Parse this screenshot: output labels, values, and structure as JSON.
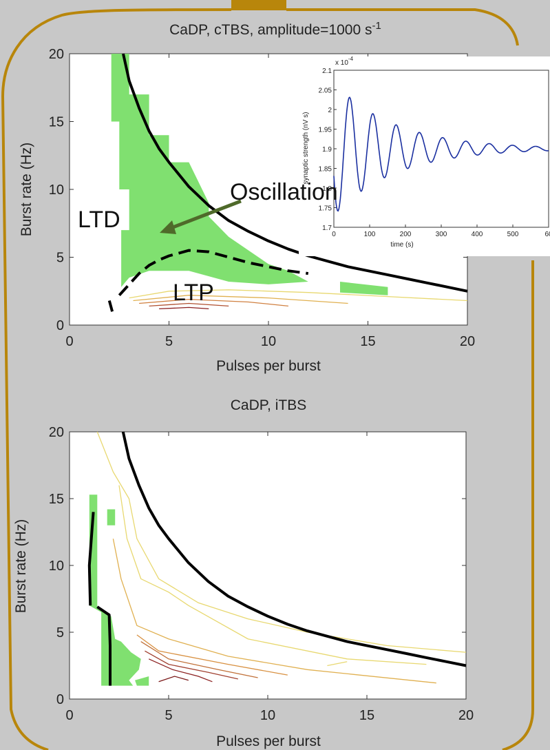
{
  "frame": {
    "border_color": "#b8860b",
    "background": "#c8c8c8"
  },
  "chart_data": [
    {
      "id": "top",
      "type": "contour",
      "title": "CaDP, cTBS, amplitude=1000 s",
      "title_superscript": "-1",
      "xlabel": "Pulses per burst",
      "ylabel": "Burst rate (Hz)",
      "xlim": [
        0,
        20
      ],
      "ylim": [
        0,
        20
      ],
      "xticks": [
        "0",
        "5",
        "10",
        "15",
        "20"
      ],
      "yticks": [
        "0",
        "5",
        "10",
        "15",
        "20"
      ],
      "annotations": {
        "ltd": "LTD",
        "ltp": "LTP",
        "oscillation": "Oscillation"
      },
      "series": [
        {
          "kind": "boundary",
          "style": "solid",
          "points": [
            [
              2.7,
              20
            ],
            [
              3,
              18
            ],
            [
              3.5,
              16
            ],
            [
              4,
              14.3
            ],
            [
              4.5,
              13
            ],
            [
              5,
              12
            ],
            [
              6,
              10.2
            ],
            [
              7,
              8.8
            ],
            [
              8,
              7.7
            ],
            [
              9,
              6.9
            ],
            [
              10,
              6.2
            ],
            [
              11,
              5.6
            ],
            [
              12,
              5.1
            ],
            [
              13,
              4.7
            ],
            [
              14,
              4.3
            ],
            [
              15,
              4
            ],
            [
              16,
              3.7
            ],
            [
              17,
              3.4
            ],
            [
              18,
              3.1
            ],
            [
              19,
              2.8
            ],
            [
              20,
              2.5
            ]
          ]
        },
        {
          "kind": "boundary",
          "style": "dashed",
          "points": [
            [
              2.5,
              2.2
            ],
            [
              3,
              3
            ],
            [
              3.5,
              3.8
            ],
            [
              4,
              4.4
            ],
            [
              4.5,
              4.8
            ],
            [
              5,
              5.1
            ],
            [
              5.5,
              5.3
            ],
            [
              6,
              5.5
            ],
            [
              7,
              5.4
            ],
            [
              8,
              5
            ],
            [
              9,
              4.6
            ],
            [
              10,
              4.3
            ],
            [
              11,
              4
            ],
            [
              12,
              3.8
            ]
          ]
        },
        {
          "kind": "boundary",
          "style": "solid",
          "points": [
            [
              2,
              1.8
            ],
            [
              2.15,
              1
            ]
          ]
        }
      ],
      "regions": [
        {
          "kind": "oscillation",
          "color": "#80e070",
          "points": [
            [
              2.1,
              20
            ],
            [
              3,
              20
            ],
            [
              3,
              17
            ],
            [
              4,
              17
            ],
            [
              4,
              14
            ],
            [
              5,
              14
            ],
            [
              5,
              12
            ],
            [
              6,
              12
            ],
            [
              7,
              9
            ],
            [
              7,
              8
            ],
            [
              8,
              6.5
            ],
            [
              9,
              5.5
            ],
            [
              10,
              4.5
            ],
            [
              11,
              4
            ],
            [
              12,
              3.2
            ],
            [
              10,
              3
            ],
            [
              8,
              3.2
            ],
            [
              6,
              4
            ],
            [
              4,
              4
            ],
            [
              3,
              3.5
            ],
            [
              2.6,
              2.8
            ],
            [
              2.6,
              7
            ],
            [
              3,
              7
            ],
            [
              3,
              10
            ],
            [
              2.5,
              10
            ],
            [
              2.5,
              15
            ],
            [
              2.1,
              15
            ]
          ]
        },
        {
          "kind": "oscillation",
          "color": "#80e070",
          "points": [
            [
              13.6,
              3.2
            ],
            [
              16,
              2.8
            ],
            [
              16,
              2.2
            ],
            [
              13.6,
              2.4
            ]
          ]
        }
      ],
      "contours": [
        {
          "color": "#e8d870",
          "points": [
            [
              3,
              2
            ],
            [
              5,
              2.5
            ],
            [
              8,
              2.6
            ],
            [
              12,
              2.4
            ],
            [
              16,
              2.1
            ],
            [
              20,
              1.8
            ]
          ]
        },
        {
          "color": "#e0b050",
          "points": [
            [
              3.2,
              1.8
            ],
            [
              6,
              2.2
            ],
            [
              10,
              2
            ],
            [
              14,
              1.6
            ]
          ]
        },
        {
          "color": "#d08040",
          "points": [
            [
              3.5,
              1.6
            ],
            [
              6,
              1.9
            ],
            [
              9,
              1.7
            ],
            [
              11,
              1.4
            ]
          ]
        },
        {
          "color": "#b05030",
          "points": [
            [
              4,
              1.4
            ],
            [
              6,
              1.6
            ],
            [
              8,
              1.4
            ]
          ]
        },
        {
          "color": "#8b2020",
          "points": [
            [
              4.5,
              1.2
            ],
            [
              6,
              1.3
            ],
            [
              7,
              1.2
            ]
          ]
        }
      ]
    },
    {
      "id": "inset",
      "type": "line",
      "title": "",
      "xlabel": "time (s)",
      "ylabel": "synaptic strength (nV s)",
      "y_exponent": "x 10",
      "y_exponent_power": "-4",
      "xlim": [
        0,
        600
      ],
      "ylim": [
        1.7,
        2.1
      ],
      "xticks": [
        "0",
        "100",
        "200",
        "300",
        "400",
        "500",
        "60"
      ],
      "yticks": [
        "1.7",
        "1.75",
        "1.8",
        "1.85",
        "1.9",
        "1.95",
        "2",
        "2.05",
        "2.1"
      ],
      "series": [
        {
          "name": "",
          "color": "#1a2fa0",
          "model": {
            "base": 1.9,
            "amp": 0.17,
            "period": 65,
            "decay": 170,
            "phase": 0.42,
            "start": 0,
            "end": 600
          }
        }
      ]
    },
    {
      "id": "bottom",
      "type": "contour",
      "title": "CaDP, iTBS",
      "xlabel": "Pulses per burst",
      "ylabel": "Burst rate (Hz)",
      "xlim": [
        0,
        20
      ],
      "ylim": [
        0,
        20
      ],
      "xticks": [
        "0",
        "5",
        "10",
        "15",
        "20"
      ],
      "yticks": [
        "0",
        "5",
        "10",
        "15",
        "20"
      ],
      "series": [
        {
          "kind": "boundary",
          "style": "solid",
          "points": [
            [
              2.7,
              20
            ],
            [
              3,
              18
            ],
            [
              3.5,
              16
            ],
            [
              4,
              14.3
            ],
            [
              4.5,
              13
            ],
            [
              5,
              12
            ],
            [
              6,
              10.2
            ],
            [
              7,
              8.8
            ],
            [
              8,
              7.7
            ],
            [
              9,
              6.9
            ],
            [
              10,
              6.2
            ],
            [
              11,
              5.6
            ],
            [
              12,
              5.1
            ],
            [
              13,
              4.7
            ],
            [
              14,
              4.3
            ],
            [
              15,
              4
            ],
            [
              16,
              3.7
            ],
            [
              17,
              3.4
            ],
            [
              18,
              3.1
            ],
            [
              19,
              2.8
            ],
            [
              20,
              2.5
            ]
          ]
        },
        {
          "kind": "boundary",
          "style": "solid",
          "points": [
            [
              1.2,
              14
            ],
            [
              1.1,
              12
            ],
            [
              1,
              10
            ],
            [
              1.05,
              7
            ]
          ]
        },
        {
          "kind": "boundary",
          "style": "solid",
          "points": [
            [
              1.4,
              6.9
            ],
            [
              2,
              6.3
            ],
            [
              2.05,
              4
            ],
            [
              2.05,
              1
            ]
          ]
        }
      ],
      "regions": [
        {
          "kind": "oscillation",
          "color": "#80e070",
          "points": [
            [
              1,
              15.3
            ],
            [
              1.4,
              15.3
            ],
            [
              1.4,
              6.9
            ],
            [
              2.1,
              6.2
            ],
            [
              2.3,
              4.5
            ],
            [
              2.6,
              4.3
            ],
            [
              3.1,
              3.5
            ],
            [
              3.6,
              3
            ],
            [
              3.5,
              2.2
            ],
            [
              3,
              1.4
            ],
            [
              3.2,
              1
            ],
            [
              1.6,
              1
            ],
            [
              1.6,
              6.5
            ],
            [
              1,
              7
            ],
            [
              1,
              11
            ]
          ]
        },
        {
          "kind": "oscillation",
          "color": "#80e070",
          "points": [
            [
              3.3,
              1.4
            ],
            [
              4,
              1.7
            ],
            [
              4,
              1
            ],
            [
              3.4,
              1
            ]
          ]
        },
        {
          "kind": "oscillation",
          "color": "#80e070",
          "points": [
            [
              1.9,
              14.2
            ],
            [
              2.3,
              14.2
            ],
            [
              2.3,
              13
            ],
            [
              1.9,
              13
            ]
          ]
        }
      ],
      "contours": [
        {
          "color": "#e8d870",
          "points": [
            [
              1.4,
              20
            ],
            [
              2.2,
              17
            ],
            [
              3,
              15
            ],
            [
              3.4,
              12
            ],
            [
              4.5,
              9
            ],
            [
              6.5,
              7.2
            ],
            [
              9,
              6
            ],
            [
              12,
              5
            ],
            [
              16,
              4
            ],
            [
              20,
              3.5
            ]
          ]
        },
        {
          "color": "#e8d870",
          "points": [
            [
              2.5,
              16
            ],
            [
              2.9,
              12
            ],
            [
              3.6,
              9
            ],
            [
              5,
              8
            ],
            [
              6,
              7
            ],
            [
              9,
              4.5
            ],
            [
              14,
              3
            ],
            [
              18,
              2.6
            ]
          ]
        },
        {
          "color": "#e0b050",
          "points": [
            [
              2.2,
              12
            ],
            [
              2.6,
              9
            ],
            [
              3.4,
              5.5
            ],
            [
              5,
              4.5
            ],
            [
              8,
              3.2
            ],
            [
              12,
              2.2
            ],
            [
              18.5,
              1.2
            ]
          ]
        },
        {
          "color": "#d89040",
          "points": [
            [
              3.4,
              4.8
            ],
            [
              4.5,
              3.6
            ],
            [
              8,
              2.6
            ],
            [
              11,
              1.8
            ]
          ]
        },
        {
          "color": "#c07038",
          "points": [
            [
              3.6,
              4.3
            ],
            [
              5,
              3
            ],
            [
              7.5,
              2.2
            ],
            [
              9.5,
              1.6
            ]
          ]
        },
        {
          "color": "#a04030",
          "points": [
            [
              3.8,
              3.6
            ],
            [
              5,
              2.6
            ],
            [
              7,
              2
            ],
            [
              8.5,
              1.5
            ]
          ]
        },
        {
          "color": "#8b2020",
          "points": [
            [
              4,
              3
            ],
            [
              5.2,
              2.2
            ],
            [
              6.5,
              1.7
            ],
            [
              7.2,
              1.3
            ]
          ]
        },
        {
          "color": "#7a1818",
          "points": [
            [
              4.5,
              1.3
            ],
            [
              5.3,
              1.7
            ],
            [
              6,
              1.4
            ]
          ]
        },
        {
          "color": "#e8d870",
          "points": [
            [
              13,
              2.5
            ],
            [
              14,
              2.8
            ]
          ]
        }
      ]
    }
  ]
}
